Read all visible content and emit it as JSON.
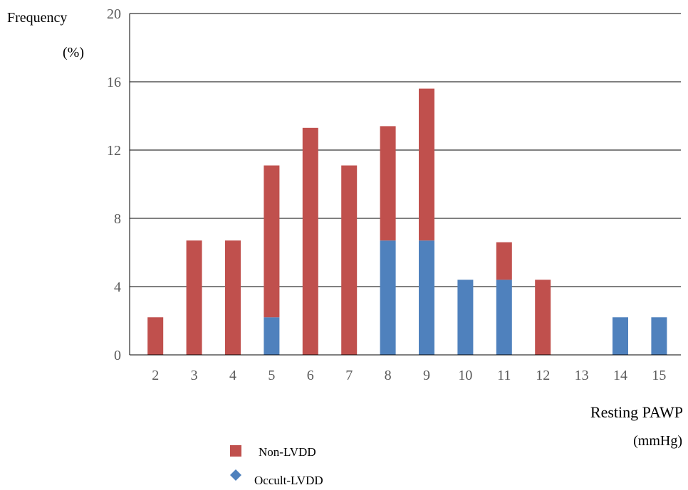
{
  "chart_data": {
    "type": "bar",
    "stacked": true,
    "categories": [
      "2",
      "3",
      "4",
      "5",
      "6",
      "7",
      "8",
      "9",
      "10",
      "11",
      "12",
      "13",
      "14",
      "15"
    ],
    "series": [
      {
        "name": "Occult-LVDD",
        "color": "#4f81bd",
        "values": [
          0,
          0,
          0,
          2.2,
          0,
          0,
          6.7,
          6.7,
          4.4,
          4.4,
          0,
          0,
          2.2,
          2.2
        ]
      },
      {
        "name": "Non-LVDD",
        "color": "#c0504d",
        "values": [
          2.2,
          6.7,
          6.7,
          8.9,
          13.3,
          11.1,
          6.7,
          8.9,
          0,
          2.2,
          4.4,
          0,
          0,
          0
        ]
      }
    ],
    "ylabel_line1": "Frequency",
    "ylabel_line2": "(%)",
    "xlabel_line1": "Resting PAWP",
    "xlabel_line2": "(mmHg)",
    "ylim": [
      0,
      20
    ],
    "y_ticks": [
      0,
      4,
      8,
      12,
      16,
      20
    ],
    "grid": true,
    "legend_position": "bottom-center",
    "legend": [
      {
        "label": "Non-LVDD",
        "marker": "square",
        "color": "#c0504d"
      },
      {
        "label": "Occult-LVDD",
        "marker": "diamond",
        "color": "#4f81bd"
      }
    ]
  }
}
